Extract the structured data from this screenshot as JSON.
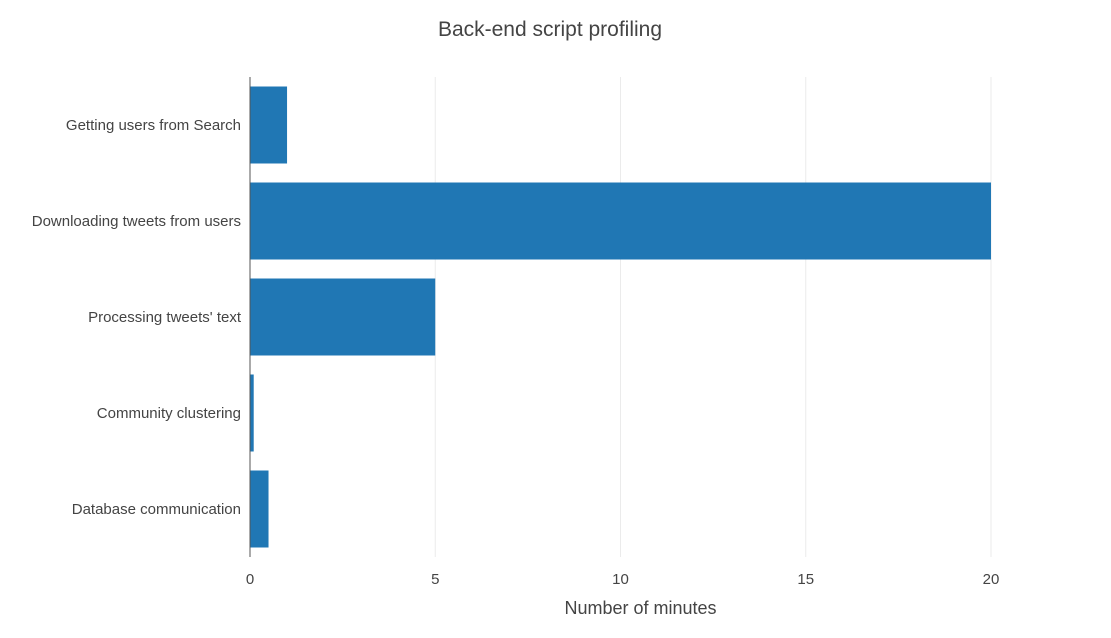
{
  "chart_data": {
    "type": "bar",
    "orientation": "horizontal",
    "title": "Back-end script profiling",
    "xlabel": "Number of minutes",
    "ylabel": "",
    "categories": [
      "Getting users from Search",
      "Downloading tweets from users",
      "Processing tweets' text",
      "Community clustering",
      "Database communication"
    ],
    "values": [
      1,
      20,
      5,
      0.1,
      0.5
    ],
    "xlim": [
      0,
      20
    ],
    "xticks": [
      0,
      5,
      10,
      15,
      20
    ],
    "grid": true,
    "legend": "none",
    "bar_color": "#2077b4",
    "grid_color": "#ebebeb",
    "axis_color": "#555555"
  }
}
